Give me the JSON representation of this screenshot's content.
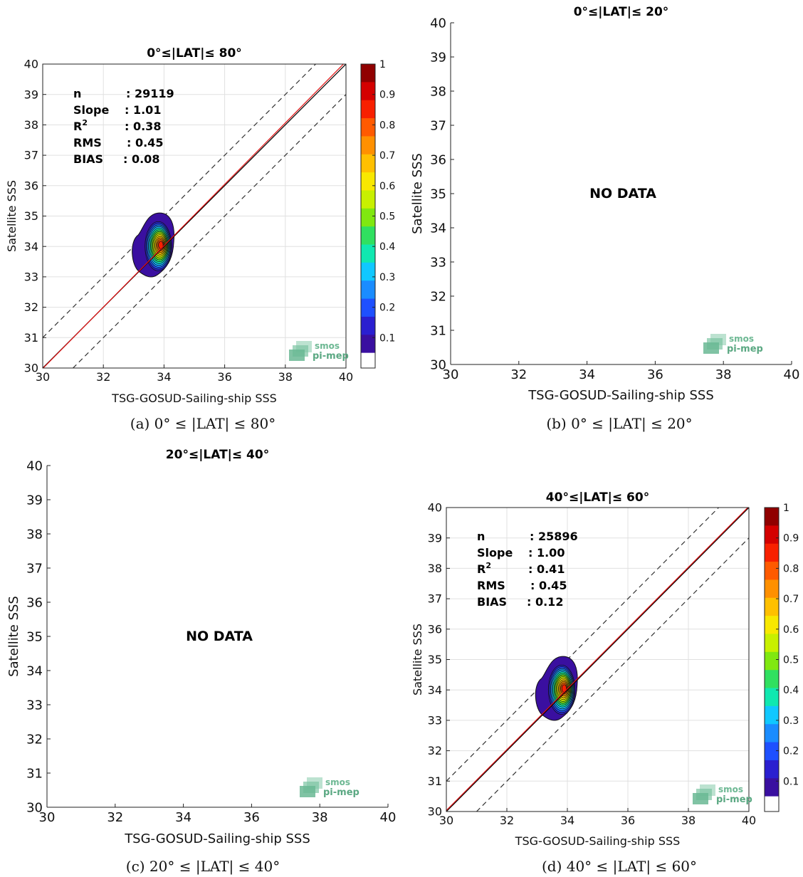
{
  "chart_data": [
    {
      "id": "a",
      "type": "scatter",
      "title": "0°≤|LAT|≤ 80°",
      "xlabel": "TSG-GOSUD-Sailing-ship SSS",
      "ylabel": "Satellite SSS",
      "xlim": [
        30,
        40
      ],
      "ylim": [
        30,
        40
      ],
      "xticks": [
        "30",
        "32",
        "34",
        "36",
        "38",
        "40"
      ],
      "yticks": [
        "30",
        "31",
        "32",
        "33",
        "34",
        "35",
        "36",
        "37",
        "38",
        "39",
        "40"
      ],
      "grid": true,
      "density_center": [
        33.9,
        34.05
      ],
      "reference_lines": {
        "identity": "y = x",
        "regression_slope": 1.01,
        "bias": 0.08,
        "dashed_offset": 1
      },
      "stats": [
        {
          "label": "n",
          "value": ": 29119"
        },
        {
          "label": "Slope",
          "value": ": 1.01"
        },
        {
          "label": "R",
          "sup": "2",
          "value": ": 0.38"
        },
        {
          "label": "RMS",
          "value": ": 0.45"
        },
        {
          "label": "BIAS",
          "value": ": 0.08"
        }
      ],
      "colorbar": {
        "ticks": [
          "0.1",
          "0.2",
          "0.3",
          "0.4",
          "0.5",
          "0.6",
          "0.7",
          "0.8",
          "0.9",
          "1"
        ],
        "range": [
          0,
          1
        ]
      },
      "logo": {
        "line1": "smos",
        "line2": "pi-mep"
      },
      "caption": "(a) 0° ≤ |LAT| ≤ 80°"
    },
    {
      "id": "b",
      "type": "scatter",
      "title": "0°≤|LAT|≤ 20°",
      "xlabel": "TSG-GOSUD-Sailing-ship SSS",
      "ylabel": "Satellite SSS",
      "xlim": [
        30,
        40
      ],
      "ylim": [
        30,
        40
      ],
      "xticks": [
        "30",
        "32",
        "34",
        "36",
        "38",
        "40"
      ],
      "yticks": [
        "30",
        "31",
        "32",
        "33",
        "34",
        "35",
        "36",
        "37",
        "38",
        "39",
        "40"
      ],
      "grid": false,
      "message": "NO DATA",
      "logo": {
        "line1": "smos",
        "line2": "pi-mep"
      },
      "caption": "(b) 0° ≤ |LAT| ≤ 20°"
    },
    {
      "id": "c",
      "type": "scatter",
      "title": "20°≤|LAT|≤ 40°",
      "xlabel": "TSG-GOSUD-Sailing-ship SSS",
      "ylabel": "Satellite SSS",
      "xlim": [
        30,
        40
      ],
      "ylim": [
        30,
        40
      ],
      "xticks": [
        "30",
        "32",
        "34",
        "36",
        "38",
        "40"
      ],
      "yticks": [
        "30",
        "31",
        "32",
        "33",
        "34",
        "35",
        "36",
        "37",
        "38",
        "39",
        "40"
      ],
      "grid": false,
      "message": "NO DATA",
      "logo": {
        "line1": "smos",
        "line2": "pi-mep"
      },
      "caption": "(c) 20° ≤ |LAT| ≤ 40°"
    },
    {
      "id": "d",
      "type": "scatter",
      "title": "40°≤|LAT|≤ 60°",
      "xlabel": "TSG-GOSUD-Sailing-ship SSS",
      "ylabel": "Satellite SSS",
      "xlim": [
        30,
        40
      ],
      "ylim": [
        30,
        40
      ],
      "xticks": [
        "30",
        "32",
        "34",
        "36",
        "38",
        "40"
      ],
      "yticks": [
        "30",
        "31",
        "32",
        "33",
        "34",
        "35",
        "36",
        "37",
        "38",
        "39",
        "40"
      ],
      "grid": true,
      "density_center": [
        33.9,
        34.05
      ],
      "reference_lines": {
        "identity": "y = x",
        "regression_slope": 1.0,
        "bias": 0.12,
        "dashed_offset": 1
      },
      "stats": [
        {
          "label": "n",
          "value": ": 25896"
        },
        {
          "label": "Slope",
          "value": ": 1.00"
        },
        {
          "label": "R",
          "sup": "2",
          "value": ": 0.41"
        },
        {
          "label": "RMS",
          "value": ": 0.45"
        },
        {
          "label": "BIAS",
          "value": ": 0.12"
        }
      ],
      "colorbar": {
        "ticks": [
          "0.1",
          "0.2",
          "0.3",
          "0.4",
          "0.5",
          "0.6",
          "0.7",
          "0.8",
          "0.9",
          "1"
        ],
        "range": [
          0,
          1
        ]
      },
      "logo": {
        "line1": "smos",
        "line2": "pi-mep"
      },
      "caption": "(d) 40° ≤ |LAT| ≤ 60°"
    }
  ]
}
